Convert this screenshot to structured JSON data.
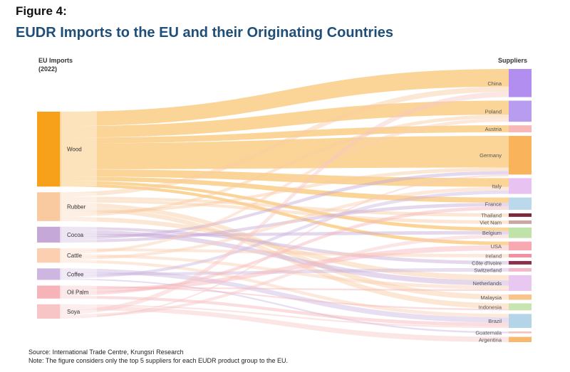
{
  "figure_label": "Figure 4:",
  "title": "EUDR Imports to the EU and their Originating Countries",
  "left_header": [
    "EU Imports",
    "(2022)"
  ],
  "right_header": "Suppliers",
  "footnotes": {
    "source": "Source: International Trade Centre, Krungsri Research",
    "note": "Note: The figure considers only the top 5 suppliers for each EUDR product group to the EU."
  },
  "chart_data": {
    "type": "sankey",
    "title": "EUDR Imports to the EU and their Originating Countries",
    "sources": [
      {
        "name": "Wood",
        "color": "#f7a11a",
        "value": 52
      },
      {
        "name": "Rubber",
        "color": "#f9c9a0",
        "value": 20
      },
      {
        "name": "Cocoa",
        "color": "#c5a8d8",
        "value": 11
      },
      {
        "name": "Cattle",
        "color": "#fbcfb0",
        "value": 10
      },
      {
        "name": "Coffee",
        "color": "#cdb6e0",
        "value": 8
      },
      {
        "name": "Oil Palm",
        "color": "#f6b3b8",
        "value": 9
      },
      {
        "name": "Soya",
        "color": "#f7c5c5",
        "value": 10
      }
    ],
    "targets": [
      {
        "name": "China",
        "color": "#b28ef0",
        "value": 16
      },
      {
        "name": "Poland",
        "color": "#b89cf0",
        "value": 12
      },
      {
        "name": "Austria",
        "color": "#f8b8b8",
        "value": 4
      },
      {
        "name": "Germany",
        "color": "#f9b35a",
        "value": 22
      },
      {
        "name": "Italy",
        "color": "#e8c2f0",
        "value": 9
      },
      {
        "name": "France",
        "color": "#bcd8ec",
        "value": 7
      },
      {
        "name": "Thailand",
        "color": "#7a2a3a",
        "value": 2
      },
      {
        "name": "Viet Nam",
        "color": "#c8a8a0",
        "value": 2
      },
      {
        "name": "Belgium",
        "color": "#bfe3a8",
        "value": 6
      },
      {
        "name": "USA",
        "color": "#f7a8b0",
        "value": 5
      },
      {
        "name": "Ireland",
        "color": "#f48ea0",
        "value": 2
      },
      {
        "name": "Côte d'Ivoire",
        "color": "#8a3048",
        "value": 2
      },
      {
        "name": "Switzerland",
        "color": "#f4b8c8",
        "value": 2
      },
      {
        "name": "Netherlands",
        "color": "#e8c8f0",
        "value": 9
      },
      {
        "name": "Malaysia",
        "color": "#f9c48a",
        "value": 3
      },
      {
        "name": "Indonesia",
        "color": "#c8e4b0",
        "value": 4
      },
      {
        "name": "Brazil",
        "color": "#b4d4e8",
        "value": 8
      },
      {
        "name": "Guatemala",
        "color": "#f4c0b8",
        "value": 1
      },
      {
        "name": "Argentina",
        "color": "#f9b870",
        "value": 3
      }
    ],
    "links": [
      {
        "source": "Wood",
        "target": "China",
        "value": 10
      },
      {
        "source": "Wood",
        "target": "Poland",
        "value": 8
      },
      {
        "source": "Wood",
        "target": "Austria",
        "value": 4
      },
      {
        "source": "Wood",
        "target": "Germany",
        "value": 18
      },
      {
        "source": "Wood",
        "target": "Italy",
        "value": 5
      },
      {
        "source": "Wood",
        "target": "France",
        "value": 3
      },
      {
        "source": "Wood",
        "target": "Belgium",
        "value": 2
      },
      {
        "source": "Wood",
        "target": "USA",
        "value": 2
      },
      {
        "source": "Rubber",
        "target": "China",
        "value": 3
      },
      {
        "source": "Rubber",
        "target": "Thailand",
        "value": 2
      },
      {
        "source": "Rubber",
        "target": "Viet Nam",
        "value": 2
      },
      {
        "source": "Rubber",
        "target": "Malaysia",
        "value": 3
      },
      {
        "source": "Rubber",
        "target": "Indonesia",
        "value": 3
      },
      {
        "source": "Rubber",
        "target": "Germany",
        "value": 2
      },
      {
        "source": "Rubber",
        "target": "Poland",
        "value": 2
      },
      {
        "source": "Rubber",
        "target": "Netherlands",
        "value": 3
      },
      {
        "source": "Cocoa",
        "target": "Côte d'Ivoire",
        "value": 2
      },
      {
        "source": "Cocoa",
        "target": "Netherlands",
        "value": 3
      },
      {
        "source": "Cocoa",
        "target": "Belgium",
        "value": 2
      },
      {
        "source": "Cocoa",
        "target": "Germany",
        "value": 2
      },
      {
        "source": "Cocoa",
        "target": "France",
        "value": 2
      },
      {
        "source": "Cattle",
        "target": "Ireland",
        "value": 2
      },
      {
        "source": "Cattle",
        "target": "Poland",
        "value": 2
      },
      {
        "source": "Cattle",
        "target": "Netherlands",
        "value": 2
      },
      {
        "source": "Cattle",
        "target": "Italy",
        "value": 2
      },
      {
        "source": "Cattle",
        "target": "Brazil",
        "value": 2
      },
      {
        "source": "Coffee",
        "target": "Brazil",
        "value": 3
      },
      {
        "source": "Coffee",
        "target": "Switzerland",
        "value": 2
      },
      {
        "source": "Coffee",
        "target": "Italy",
        "value": 2
      },
      {
        "source": "Coffee",
        "target": "Guatemala",
        "value": 1
      },
      {
        "source": "Oil Palm",
        "target": "Indonesia",
        "value": 1
      },
      {
        "source": "Oil Palm",
        "target": "Netherlands",
        "value": 1
      },
      {
        "source": "Oil Palm",
        "target": "USA",
        "value": 3
      },
      {
        "source": "Oil Palm",
        "target": "France",
        "value": 2
      },
      {
        "source": "Oil Palm",
        "target": "Brazil",
        "value": 2
      },
      {
        "source": "Soya",
        "target": "Brazil",
        "value": 1
      },
      {
        "source": "Soya",
        "target": "Argentina",
        "value": 3
      },
      {
        "source": "Soya",
        "target": "China",
        "value": 3
      },
      {
        "source": "Soya",
        "target": "Belgium",
        "value": 2
      },
      {
        "source": "Soya",
        "target": "Germany",
        "value": 1
      }
    ]
  }
}
